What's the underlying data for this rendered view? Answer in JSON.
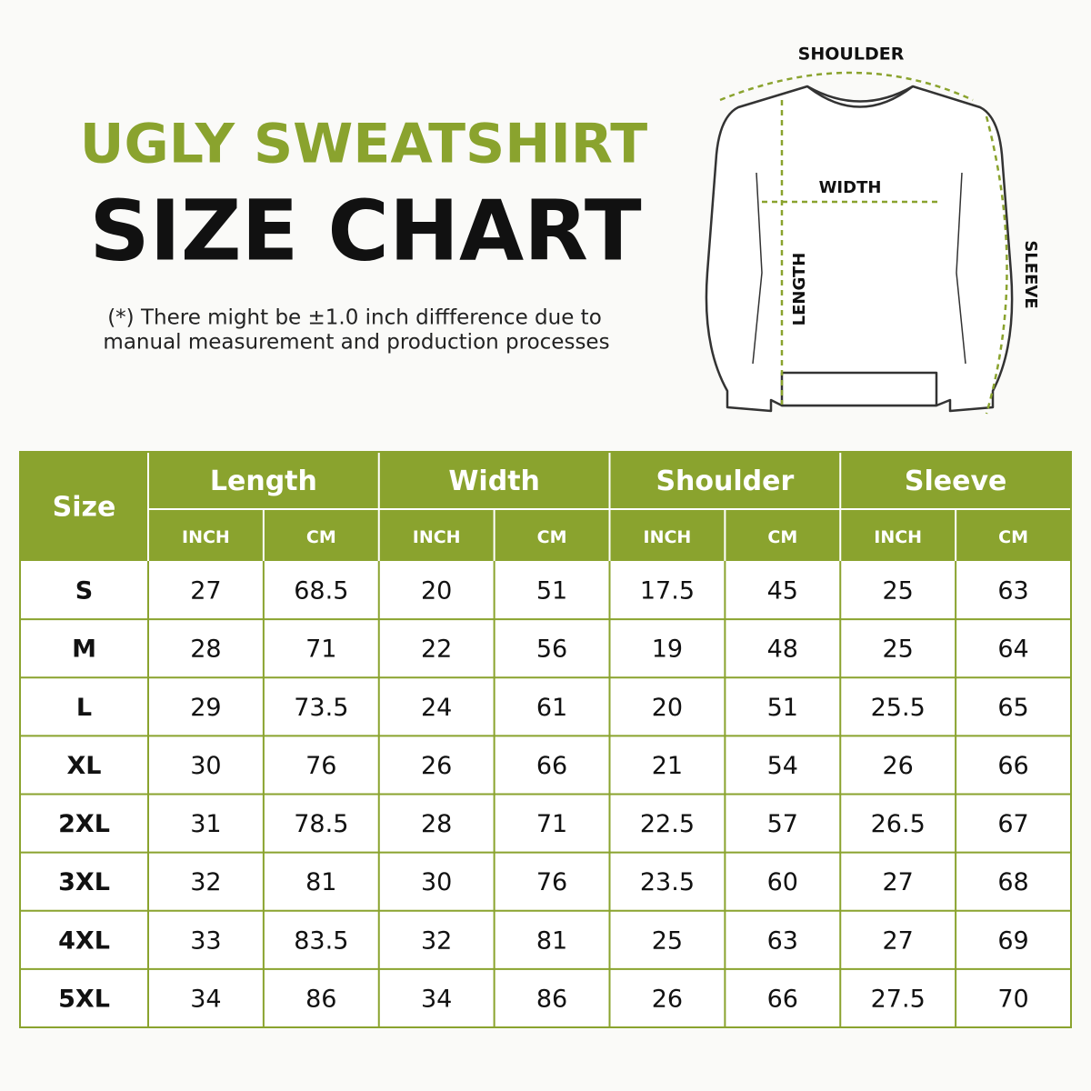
{
  "header": {
    "title_line1": "UGLY SWEATSHIRT",
    "title_line2": "SIZE CHART",
    "note": [
      "(*) There might be ±1.0 inch diffference due to",
      "manual measurement and production processes"
    ]
  },
  "diagram": {
    "shoulder": "SHOULDER",
    "width": "WIDTH",
    "length": "LENGTH",
    "sleeve": "SLEEVE"
  },
  "table": {
    "size_header": "Size",
    "groups": [
      {
        "name": "Length",
        "units": [
          "INCH",
          "CM"
        ]
      },
      {
        "name": "Width",
        "units": [
          "INCH",
          "CM"
        ]
      },
      {
        "name": "Shoulder",
        "units": [
          "INCH",
          "CM"
        ]
      },
      {
        "name": "Sleeve",
        "units": [
          "INCH",
          "CM"
        ]
      }
    ],
    "rows": [
      [
        "S",
        "27",
        "68.5",
        "20",
        "51",
        "17.5",
        "45",
        "25",
        "63"
      ],
      [
        "M",
        "28",
        "71",
        "22",
        "56",
        "19",
        "48",
        "25",
        "64"
      ],
      [
        "L",
        "29",
        "73.5",
        "24",
        "61",
        "20",
        "51",
        "25.5",
        "65"
      ],
      [
        "XL",
        "30",
        "76",
        "26",
        "66",
        "21",
        "54",
        "26",
        "66"
      ],
      [
        "2XL",
        "31",
        "78.5",
        "28",
        "71",
        "22.5",
        "57",
        "26.5",
        "67"
      ],
      [
        "3XL",
        "32",
        "81",
        "30",
        "76",
        "23.5",
        "60",
        "27",
        "68"
      ],
      [
        "4XL",
        "33",
        "83.5",
        "32",
        "81",
        "25",
        "63",
        "27",
        "69"
      ],
      [
        "5XL",
        "34",
        "86",
        "34",
        "86",
        "26",
        "66",
        "27.5",
        "70"
      ]
    ]
  }
}
